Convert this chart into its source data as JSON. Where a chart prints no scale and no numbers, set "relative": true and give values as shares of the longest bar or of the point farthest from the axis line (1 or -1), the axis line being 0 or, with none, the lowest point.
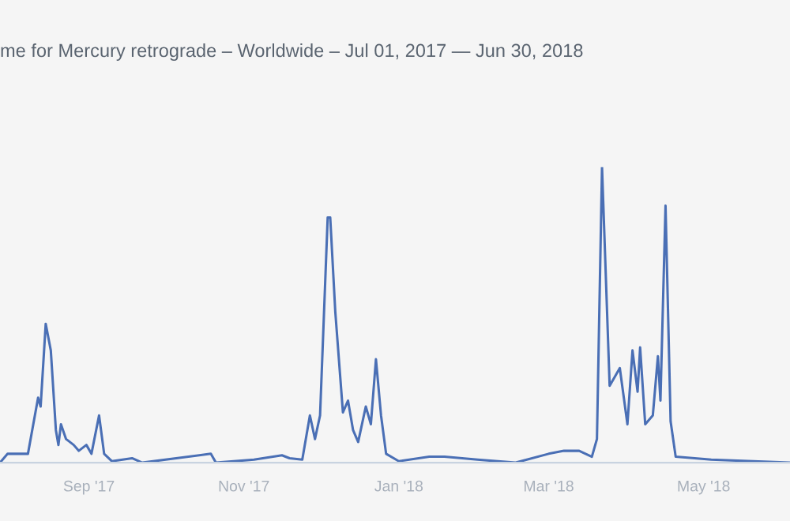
{
  "chart_data": {
    "type": "line",
    "title": "me for Mercury retrograde – Worldwide – Jul 01, 2017 — Jun 30, 2018",
    "relative": true,
    "x": [
      "2017-07-28",
      "2017-07-31",
      "2017-08-07",
      "2017-08-08",
      "2017-08-12",
      "2017-08-13",
      "2017-08-15",
      "2017-08-17",
      "2017-08-19",
      "2017-08-20",
      "2017-08-21",
      "2017-08-23",
      "2017-08-26",
      "2017-08-28",
      "2017-08-31",
      "2017-09-02",
      "2017-09-05",
      "2017-09-07",
      "2017-09-10",
      "2017-09-18",
      "2017-09-22",
      "2017-10-19",
      "2017-10-21",
      "2017-11-05",
      "2017-11-16",
      "2017-11-19",
      "2017-11-24",
      "2017-11-27",
      "2017-11-29",
      "2017-12-01",
      "2017-12-04",
      "2017-12-05",
      "2017-12-07",
      "2017-12-10",
      "2017-12-12",
      "2017-12-14",
      "2017-12-16",
      "2017-12-19",
      "2017-12-21",
      "2017-12-23",
      "2017-12-25",
      "2017-12-27",
      "2018-01-01",
      "2018-01-13",
      "2018-01-19",
      "2018-02-01",
      "2018-02-16",
      "2018-03-01",
      "2018-03-07",
      "2018-03-13",
      "2018-03-18",
      "2018-03-20",
      "2018-03-22",
      "2018-03-25",
      "2018-03-29",
      "2018-04-01",
      "2018-04-03",
      "2018-04-05",
      "2018-04-06",
      "2018-04-08",
      "2018-04-11",
      "2018-04-13",
      "2018-04-14",
      "2018-04-16",
      "2018-04-18",
      "2018-04-20",
      "2018-05-04",
      "2018-06-04"
    ],
    "series": [
      {
        "color": "#4a6fb5",
        "values": [
          0,
          0.03,
          0.03,
          0.03,
          0.22,
          0.19,
          0.47,
          0.38,
          0.11,
          0.06,
          0.13,
          0.08,
          0.06,
          0.04,
          0.06,
          0.03,
          0.16,
          0.03,
          0.005,
          0.015,
          0,
          0.03,
          0,
          0.01,
          0.025,
          0.015,
          0.01,
          0.16,
          0.08,
          0.16,
          0.83,
          0.83,
          0.51,
          0.17,
          0.21,
          0.11,
          0.07,
          0.19,
          0.13,
          0.35,
          0.16,
          0.03,
          0.005,
          0.02,
          0.02,
          0.01,
          0,
          0.03,
          0.04,
          0.04,
          0.02,
          0.08,
          1.0,
          0.26,
          0.32,
          0.13,
          0.38,
          0.24,
          0.39,
          0.13,
          0.16,
          0.36,
          0.21,
          0.87,
          0.14,
          0.02,
          0.01,
          0
        ]
      }
    ],
    "xlim": [
      "2017-07-28",
      "2018-06-04"
    ],
    "xticks": [
      {
        "value": "2017-09-01",
        "label": "Sep '17"
      },
      {
        "value": "2017-11-01",
        "label": "Nov '17"
      },
      {
        "value": "2018-01-01",
        "label": "Jan '18"
      },
      {
        "value": "2018-03-01",
        "label": "Mar '18"
      },
      {
        "value": "2018-05-01",
        "label": "May '18"
      }
    ],
    "tick_labels": "x",
    "marker": "none",
    "line_style": "solid"
  }
}
